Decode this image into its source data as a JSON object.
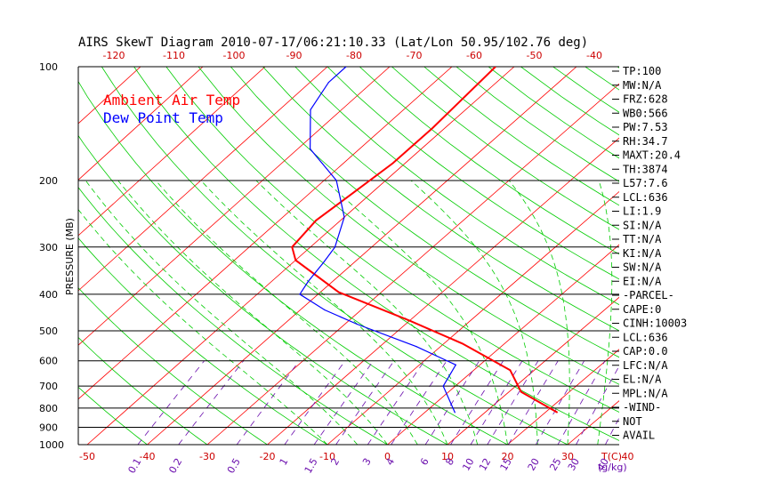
{
  "chart_data": {
    "type": "line",
    "title": "AIRS SkewT Diagram 2010-07-17/06:21:10.33 (Lat/Lon 50.95/102.76 deg)",
    "ylabel": "PRESSURE (MB)",
    "x_top_label": "",
    "x_bottom_label": "T(C)",
    "mixing_ratio_label": "(g/kg)",
    "pressure_ticks": [
      100,
      200,
      300,
      400,
      500,
      600,
      700,
      800,
      900,
      1000
    ],
    "top_temp_ticks": [
      -120,
      -110,
      -100,
      -90,
      -80,
      -70,
      -60,
      -50,
      -40
    ],
    "bottom_temp_ticks": [
      -50,
      -40,
      -30,
      -20,
      -10,
      0,
      10,
      20,
      30,
      40
    ],
    "mixing_ratio_ticks": [
      "0.1",
      "0.2",
      "0.5",
      "1",
      "1.5",
      "2",
      "3",
      "4",
      "6",
      "8",
      "10",
      "12",
      "15",
      "20",
      "25",
      "30",
      "40"
    ],
    "series": [
      {
        "name": "Ambient Air Temp",
        "color": "#ff0000",
        "points": [
          [
            822,
            22
          ],
          [
            725,
            12
          ],
          [
            635,
            6
          ],
          [
            540,
            -7
          ],
          [
            470,
            -20
          ],
          [
            395,
            -37
          ],
          [
            325,
            -50
          ],
          [
            300,
            -53
          ],
          [
            255,
            -54
          ],
          [
            215,
            -53
          ],
          [
            180,
            -52
          ],
          [
            145,
            -52
          ],
          [
            100,
            -53
          ]
        ]
      },
      {
        "name": "Dew Point Temp",
        "color": "#0000ff",
        "points": [
          [
            822,
            5
          ],
          [
            700,
            -2
          ],
          [
            615,
            -4
          ],
          [
            550,
            -14
          ],
          [
            480,
            -28
          ],
          [
            440,
            -36
          ],
          [
            400,
            -43
          ],
          [
            370,
            -44
          ],
          [
            330,
            -45
          ],
          [
            300,
            -46
          ],
          [
            250,
            -50
          ],
          [
            200,
            -58
          ],
          [
            165,
            -68
          ],
          [
            130,
            -75
          ],
          [
            110,
            -77
          ],
          [
            100,
            -77
          ]
        ]
      }
    ],
    "legend": [
      "Ambient Air Temp",
      "Dew Point Temp"
    ],
    "legend_placement": "top-left",
    "grid": true,
    "stats": [
      "TP:100",
      "MW:N/A",
      "FRZ:628",
      "WB0:566",
      "PW:7.53",
      "RH:34.7",
      "MAXT:20.4",
      "TH:3874",
      "L57:7.6",
      "LCL:636",
      "LI:1.9",
      "SI:N/A",
      "TT:N/A",
      "KI:N/A",
      "SW:N/A",
      "EI:N/A",
      "-PARCEL-",
      "CAPE:0",
      "CINH:10003",
      "LCL:636",
      "CAP:0.0",
      "LFC:N/A",
      "EL:N/A",
      "MPL:N/A",
      "-WIND-",
      "NOT",
      "AVAIL"
    ]
  },
  "colors": {
    "isotherm": "#ff0000",
    "dry_adiabat": "#00cc00",
    "moist_adiabat": "#00cc00",
    "mixing_ratio": "#6a0dad",
    "axis_tick": "#cc0000",
    "frame": "#000000"
  }
}
